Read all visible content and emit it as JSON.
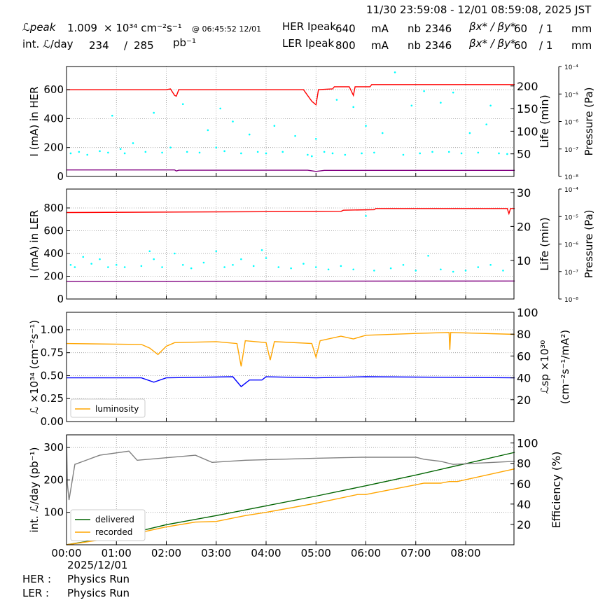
{
  "header": {
    "time_range": "11/30 23:59:08 - 12/01 08:59:08, 2025 JST",
    "lpeak_label": "ℒpeak",
    "lpeak_value": "1.009",
    "lpeak_unit": "× 10³⁴ cm⁻²s⁻¹",
    "lpeak_time": "@ 06:45:52 12/01",
    "intl_label": "int. ℒ/day",
    "intl_recorded": "234",
    "intl_sep": "/",
    "intl_delivered": "285",
    "intl_unit": "pb⁻¹",
    "her": {
      "label": "HER Ipeak",
      "current": "640",
      "unit": "mA",
      "nb_label": "nb",
      "nb": "2346",
      "beta_label": "βx* / βy*",
      "beta_x": "60",
      "beta_y": "/ 1",
      "beta_unit": "mm"
    },
    "ler": {
      "label": "LER Ipeak",
      "current": "800",
      "unit": "mA",
      "nb_label": "nb",
      "nb": "2346",
      "beta_label": "βx* / βy*",
      "beta_x": "60",
      "beta_y": "/ 1",
      "beta_unit": "mm"
    }
  },
  "footer": {
    "her_label": "HER :",
    "her_status": "Physics Run",
    "ler_label": "LER :",
    "ler_status": "Physics Run"
  },
  "x_axis": {
    "ticks": [
      "00:00",
      "01:00",
      "02:00",
      "03:00",
      "04:00",
      "05:00",
      "06:00",
      "07:00",
      "08:00"
    ],
    "date_label": "2025/12/01",
    "range": [
      "00:00",
      "08:59"
    ]
  },
  "chart_data": [
    {
      "type": "line",
      "ylabel": "I (mA) in HER",
      "y2label": "Life (min)",
      "y3label": "Pressure (Pa)",
      "ylim": [
        0,
        760
      ],
      "yticks": [
        0,
        200,
        400,
        600
      ],
      "y2lim": [
        0,
        243
      ],
      "y2ticks": [
        50,
        100,
        150,
        200
      ],
      "y3ticks": [
        "10⁻⁸",
        "10⁻⁷",
        "10⁻⁶",
        "10⁻⁵",
        "10⁻⁴"
      ],
      "grid": true,
      "series": [
        {
          "color": "#ff0000",
          "axis": "left",
          "kind": "line",
          "x": [
            "00:00",
            "02:00",
            "02:05",
            "02:10",
            "02:12",
            "02:15",
            "04:45",
            "04:55",
            "05:00",
            "05:03",
            "05:20",
            "05:22",
            "05:40",
            "05:45",
            "05:47",
            "05:55",
            "06:05",
            "06:07",
            "08:59"
          ],
          "y": [
            600,
            600,
            605,
            560,
            555,
            600,
            600,
            520,
            495,
            600,
            605,
            620,
            620,
            560,
            620,
            620,
            620,
            635,
            635
          ]
        },
        {
          "color": "#800080",
          "axis": "left",
          "kind": "line",
          "x": [
            "00:00",
            "02:10",
            "02:12",
            "02:15",
            "04:50",
            "05:00",
            "05:10",
            "08:59"
          ],
          "y": [
            45,
            45,
            38,
            43,
            43,
            35,
            42,
            42
          ]
        },
        {
          "color": "#00ffff",
          "axis": "left",
          "kind": "scatter",
          "x": [
            "00:05",
            "00:15",
            "00:25",
            "00:40",
            "00:50",
            "00:55",
            "01:05",
            "01:10",
            "01:20",
            "01:35",
            "01:45",
            "01:55",
            "02:05",
            "02:20",
            "02:25",
            "02:40",
            "02:50",
            "03:00",
            "03:05",
            "03:10",
            "03:20",
            "03:30",
            "03:40",
            "03:50",
            "04:00",
            "04:10",
            "04:20",
            "04:35",
            "04:50",
            "04:55",
            "05:00",
            "05:10",
            "05:20",
            "05:25",
            "05:35",
            "05:45",
            "05:55",
            "06:00",
            "06:10",
            "06:20",
            "06:35",
            "06:45",
            "06:55",
            "07:05",
            "07:10",
            "07:20",
            "07:30",
            "07:40",
            "07:45",
            "07:55",
            "08:05",
            "08:15",
            "08:25",
            "08:30",
            "08:40",
            "08:50"
          ],
          "y": [
            160,
            170,
            150,
            175,
            165,
            420,
            190,
            160,
            230,
            170,
            440,
            165,
            200,
            500,
            170,
            165,
            320,
            200,
            470,
            175,
            380,
            160,
            290,
            170,
            160,
            350,
            170,
            280,
            150,
            140,
            260,
            170,
            160,
            530,
            150,
            480,
            160,
            350,
            165,
            300,
            720,
            150,
            490,
            160,
            590,
            170,
            510,
            170,
            580,
            160,
            300,
            165,
            360,
            490,
            160,
            155
          ]
        }
      ]
    },
    {
      "type": "line",
      "ylabel": "I (mA) in LER",
      "y2label": "Life (min)",
      "y3label": "Pressure (Pa)",
      "ylim": [
        0,
        966
      ],
      "yticks": [
        0,
        200,
        400,
        600,
        800
      ],
      "y2lim": [
        -1.35,
        31
      ],
      "y2ticks": [
        10,
        20,
        30
      ],
      "y3ticks": [
        "10⁻⁸",
        "10⁻⁷",
        "10⁻⁶",
        "10⁻⁵",
        "10⁻⁴"
      ],
      "grid": true,
      "series": [
        {
          "color": "#ff0000",
          "axis": "left",
          "kind": "line",
          "x": [
            "00:00",
            "05:30",
            "05:33",
            "06:10",
            "06:12",
            "08:50",
            "08:52",
            "08:54",
            "08:59"
          ],
          "y": [
            760,
            770,
            780,
            785,
            795,
            795,
            750,
            795,
            795
          ]
        },
        {
          "color": "#800080",
          "axis": "left",
          "kind": "line",
          "x": [
            "00:00",
            "08:59"
          ],
          "y": [
            155,
            158
          ]
        },
        {
          "color": "#00ffff",
          "axis": "left",
          "kind": "scatter",
          "x": [
            "00:05",
            "00:10",
            "00:20",
            "00:30",
            "00:40",
            "00:50",
            "01:00",
            "01:10",
            "01:30",
            "01:40",
            "01:45",
            "01:55",
            "02:10",
            "02:20",
            "02:30",
            "02:45",
            "03:00",
            "03:10",
            "03:20",
            "03:30",
            "03:45",
            "03:55",
            "04:00",
            "04:15",
            "04:30",
            "04:45",
            "05:00",
            "05:15",
            "05:30",
            "05:45",
            "06:00",
            "06:10",
            "06:30",
            "06:45",
            "07:00",
            "07:15",
            "07:30",
            "07:45",
            "08:00",
            "08:15",
            "08:30",
            "08:45"
          ],
          "y": [
            300,
            280,
            370,
            310,
            350,
            280,
            300,
            280,
            290,
            420,
            350,
            280,
            400,
            300,
            270,
            320,
            420,
            280,
            300,
            350,
            290,
            430,
            360,
            280,
            270,
            310,
            280,
            260,
            290,
            260,
            730,
            250,
            270,
            300,
            250,
            380,
            260,
            240,
            250,
            280,
            300,
            250
          ]
        }
      ]
    },
    {
      "type": "line",
      "ylabel": "ℒ ×10³⁴ (cm⁻²s⁻¹)",
      "y2label": "ℒsp ×10³⁰",
      "y2label2": "(cm⁻²s⁻¹/mA²)",
      "ylim": [
        0,
        1.19
      ],
      "yticks": [
        "0.00",
        "0.25",
        "0.50",
        "0.75",
        "1.00"
      ],
      "y2lim": [
        0,
        100
      ],
      "y2ticks": [
        20,
        40,
        60,
        80,
        100
      ],
      "grid": true,
      "legend": {
        "position": "lower-left",
        "entries": [
          "luminosity"
        ]
      },
      "series": [
        {
          "name": "luminosity",
          "color": "#ffa500",
          "axis": "left",
          "kind": "line",
          "x": [
            "00:00",
            "01:30",
            "01:40",
            "01:50",
            "02:00",
            "02:10",
            "03:00",
            "03:25",
            "03:30",
            "03:35",
            "04:00",
            "04:05",
            "04:10",
            "04:55",
            "05:00",
            "05:05",
            "05:30",
            "05:45",
            "06:00",
            "07:00",
            "07:40",
            "07:41",
            "07:42",
            "08:59"
          ],
          "y": [
            0.85,
            0.84,
            0.8,
            0.73,
            0.82,
            0.86,
            0.87,
            0.85,
            0.6,
            0.88,
            0.86,
            0.67,
            0.87,
            0.85,
            0.7,
            0.88,
            0.93,
            0.9,
            0.94,
            0.96,
            0.97,
            0.78,
            0.97,
            0.95
          ]
        },
        {
          "color": "#0000ff",
          "axis": "right",
          "kind": "line",
          "x": [
            "00:00",
            "01:30",
            "01:45",
            "02:00",
            "03:20",
            "03:30",
            "03:40",
            "03:55",
            "04:00",
            "05:00",
            "06:00",
            "08:59"
          ],
          "y": [
            40,
            40,
            36,
            40,
            41,
            32,
            38,
            38,
            41,
            40,
            41,
            40
          ]
        }
      ]
    },
    {
      "type": "line",
      "ylabel": "int. ℒ/day (pb⁻¹)",
      "y2label": "Efficiency (%)",
      "ylim": [
        0,
        339
      ],
      "yticks": [
        100,
        200,
        300
      ],
      "y2lim": [
        0,
        108
      ],
      "y2ticks": [
        20,
        40,
        60,
        80,
        100
      ],
      "grid": true,
      "legend": {
        "position": "lower-left",
        "entries": [
          "delivered",
          "recorded"
        ]
      },
      "series": [
        {
          "name": "delivered",
          "color": "#006400",
          "axis": "left",
          "kind": "line",
          "x": [
            "00:00",
            "01:00",
            "02:00",
            "03:00",
            "04:00",
            "05:00",
            "06:00",
            "07:00",
            "08:00",
            "08:59"
          ],
          "y": [
            0,
            25,
            62,
            90,
            120,
            150,
            182,
            215,
            250,
            285
          ]
        },
        {
          "name": "recorded",
          "color": "#ffa500",
          "axis": "left",
          "kind": "line",
          "x": [
            "00:00",
            "01:00",
            "02:00",
            "02:35",
            "03:00",
            "03:35",
            "04:00",
            "05:00",
            "05:50",
            "06:00",
            "07:00",
            "07:10",
            "07:30",
            "07:40",
            "07:50",
            "08:59"
          ],
          "y": [
            0,
            22,
            55,
            70,
            72,
            90,
            100,
            128,
            155,
            155,
            185,
            190,
            190,
            195,
            195,
            234
          ]
        },
        {
          "color": "#808080",
          "axis": "right",
          "kind": "line",
          "x": [
            "00:00",
            "00:01",
            "00:03",
            "00:10",
            "00:40",
            "01:15",
            "01:25",
            "02:35",
            "02:55",
            "03:35",
            "05:00",
            "05:55",
            "07:00",
            "07:10",
            "07:30",
            "07:45",
            "08:59"
          ],
          "y": [
            108,
            60,
            44,
            79,
            88,
            92,
            83,
            88,
            81,
            83,
            85,
            86,
            86,
            84,
            82,
            79,
            82
          ]
        }
      ]
    }
  ]
}
